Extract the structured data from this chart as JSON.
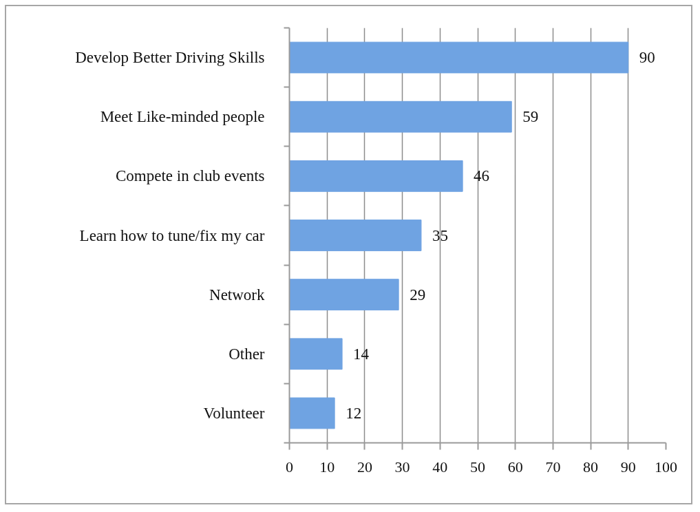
{
  "chart_data": {
    "type": "bar",
    "orientation": "horizontal",
    "categories": [
      "Develop Better Driving Skills",
      "Meet Like-minded people",
      "Compete in club events",
      "Learn how to tune/fix my car",
      "Network",
      "Other",
      "Volunteer"
    ],
    "values": [
      90,
      59,
      46,
      35,
      29,
      14,
      12
    ],
    "color": "#6fa3e2",
    "xlim": [
      0,
      100
    ],
    "xticks": [
      0,
      10,
      20,
      30,
      40,
      50,
      60,
      70,
      80,
      90,
      100
    ],
    "grid": "x",
    "data_labels": true
  }
}
